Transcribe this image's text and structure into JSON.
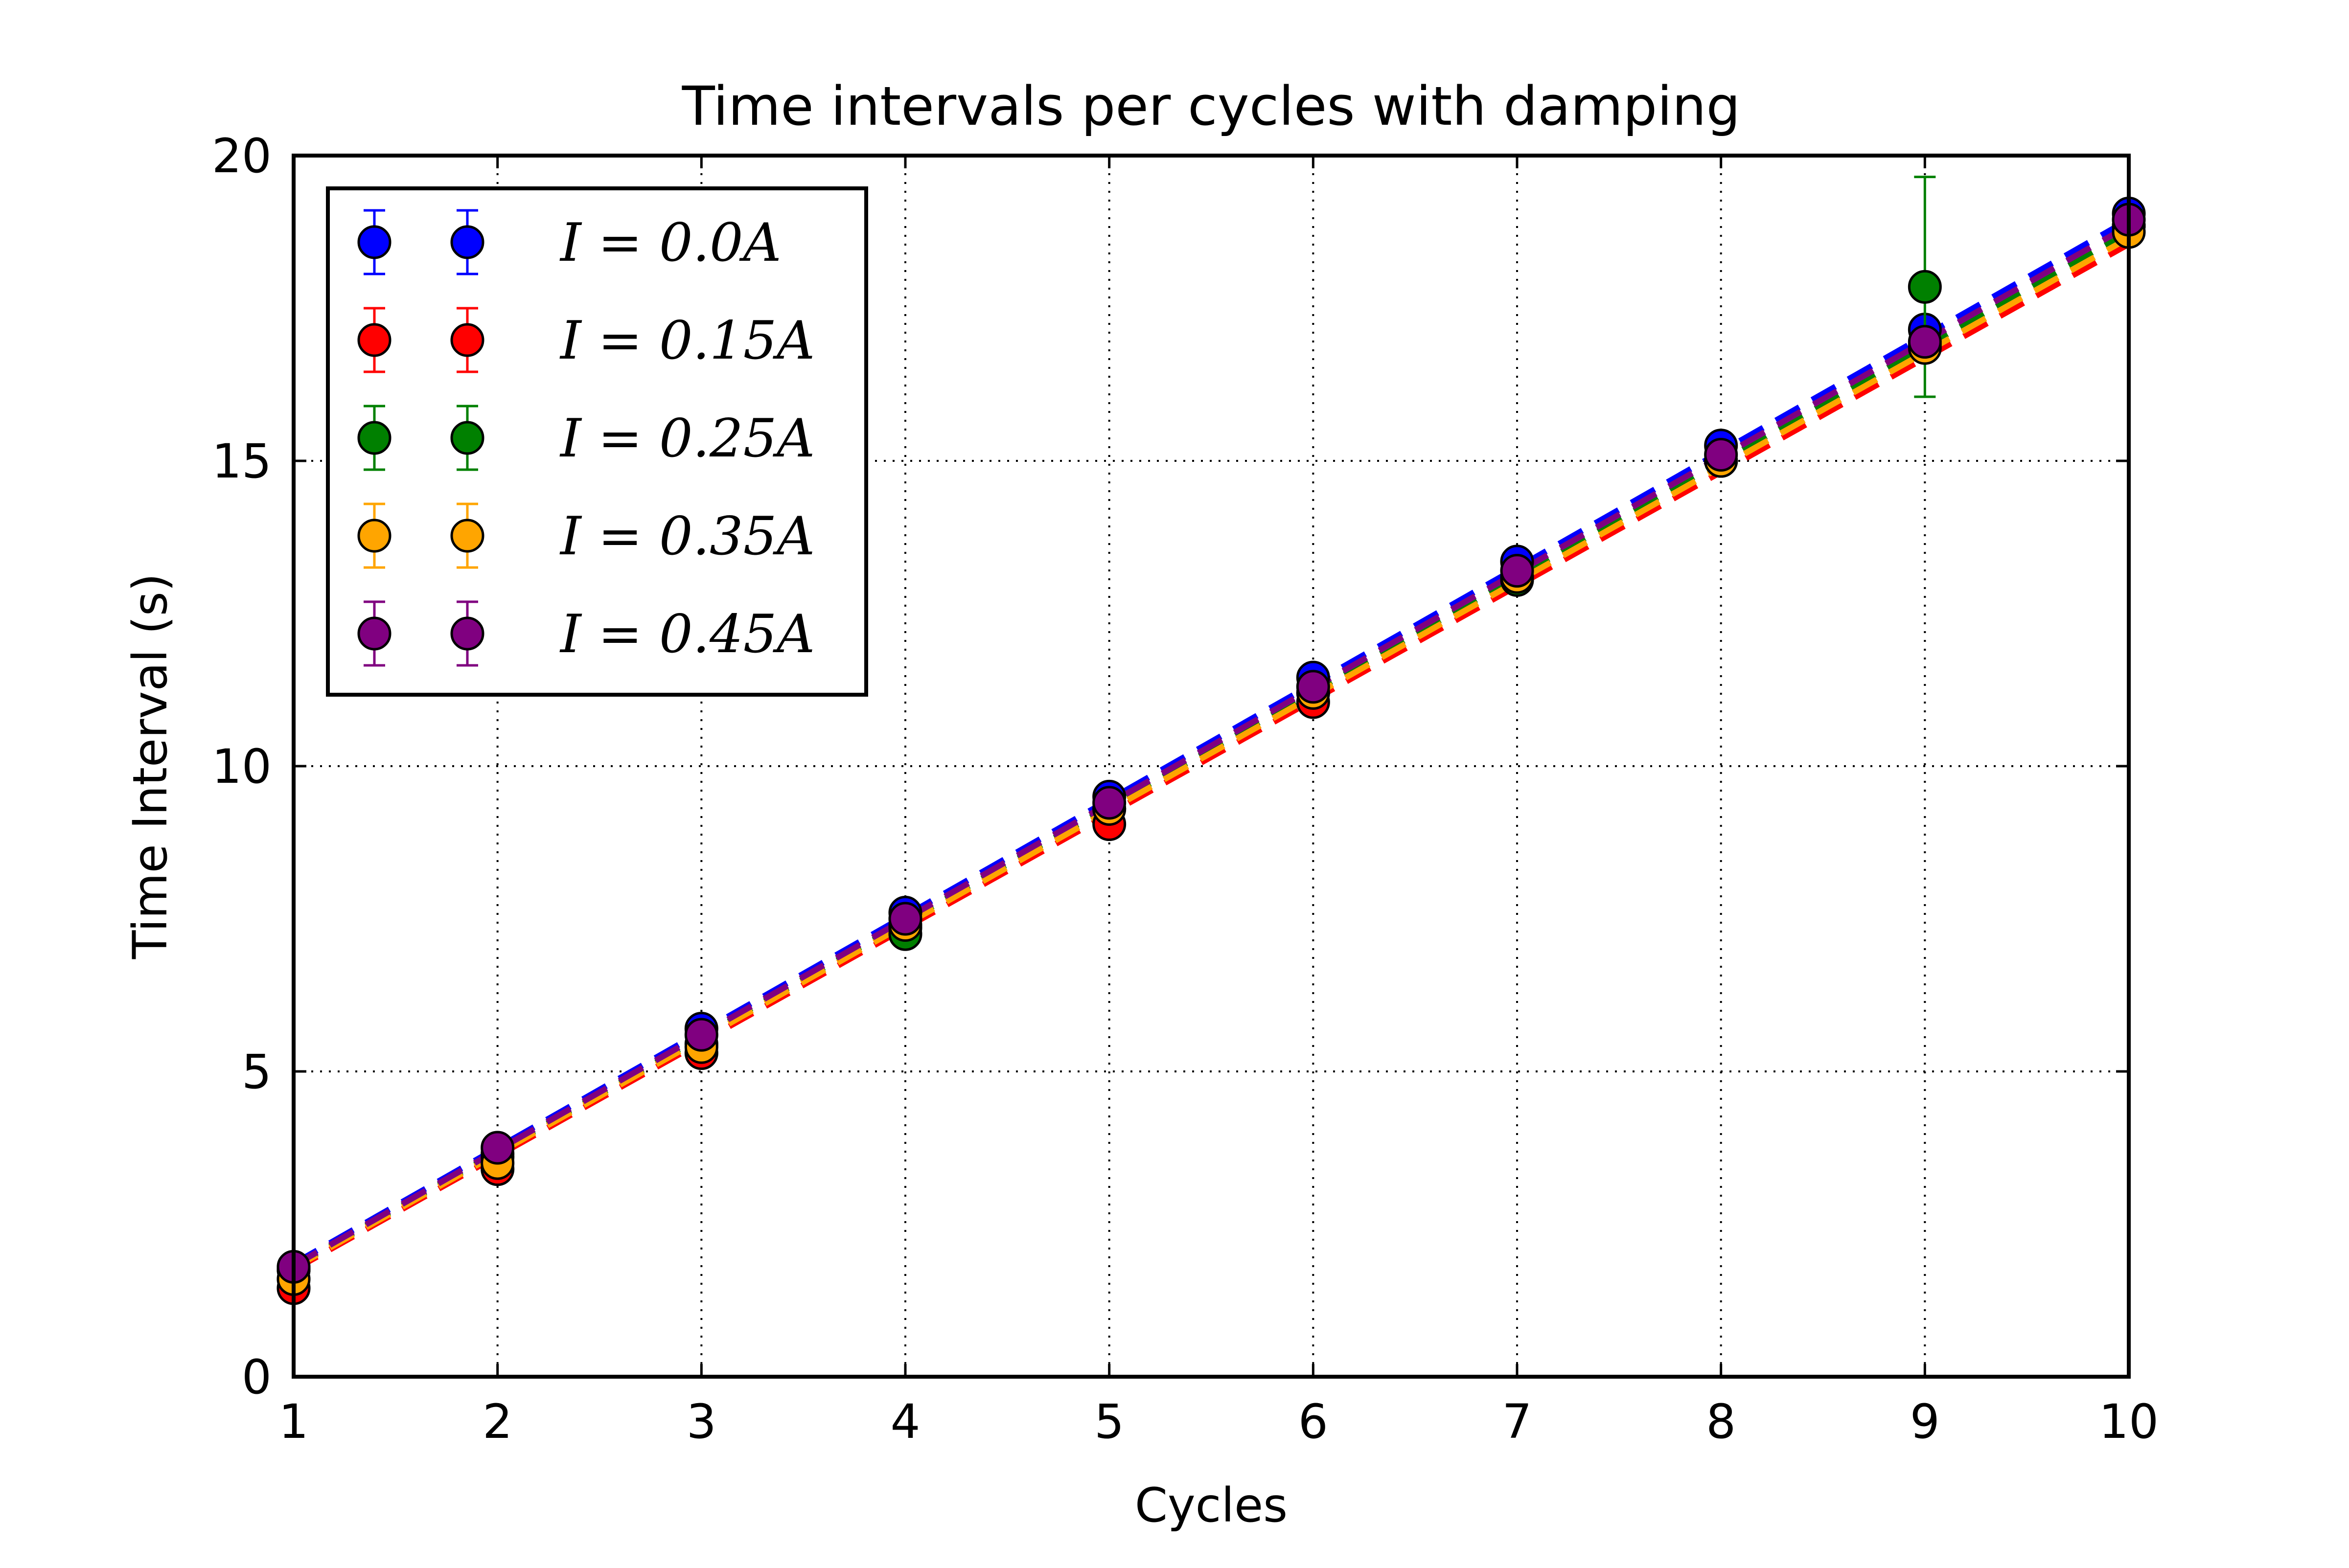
{
  "chart_data": {
    "type": "scatter",
    "title": "Time intervals per cycles with damping",
    "xlabel": "Cycles",
    "ylabel": "Time Interval (s)",
    "xlim": [
      1,
      10
    ],
    "ylim": [
      0,
      20
    ],
    "xticks": [
      1,
      2,
      3,
      4,
      5,
      6,
      7,
      8,
      9,
      10
    ],
    "yticks": [
      0,
      5,
      10,
      15,
      20
    ],
    "grid": true,
    "legend_position": "top-left",
    "x": [
      1,
      2,
      3,
      4,
      5,
      6,
      7,
      8,
      9,
      10
    ],
    "series": [
      {
        "name": "I = 0.0A",
        "color": "#0000ff",
        "values": [
          1.75,
          3.65,
          5.7,
          7.6,
          9.5,
          11.45,
          13.35,
          15.25,
          17.15,
          19.05
        ],
        "errors": [
          0.05,
          0.05,
          0.05,
          0.05,
          0.05,
          0.05,
          0.05,
          0.05,
          0.05,
          0.05
        ],
        "fit": [
          1.85,
          18.95
        ]
      },
      {
        "name": "I = 0.15A",
        "color": "#ff0000",
        "values": [
          1.45,
          3.4,
          5.3,
          7.35,
          9.05,
          11.05,
          13.1,
          15.0,
          16.9,
          18.85
        ],
        "errors": [
          0.05,
          0.05,
          0.05,
          0.05,
          0.05,
          0.05,
          0.05,
          0.05,
          0.05,
          0.05
        ],
        "fit": [
          1.75,
          18.55
        ]
      },
      {
        "name": "I = 0.25A",
        "color": "#008000",
        "values": [
          1.75,
          3.6,
          5.45,
          7.25,
          9.3,
          11.2,
          13.05,
          15.0,
          17.85,
          18.85
        ],
        "errors": [
          0.05,
          0.05,
          0.05,
          0.05,
          0.05,
          0.05,
          0.05,
          0.05,
          1.8,
          0.05
        ],
        "fit": [
          1.8,
          18.75
        ]
      },
      {
        "name": "I = 0.35A",
        "color": "#ffa500",
        "values": [
          1.6,
          3.5,
          5.4,
          7.4,
          9.3,
          11.2,
          13.1,
          15.0,
          16.85,
          18.75
        ],
        "errors": [
          0.05,
          0.05,
          0.05,
          0.05,
          0.05,
          0.05,
          0.05,
          0.05,
          0.05,
          0.05
        ],
        "fit": [
          1.78,
          18.65
        ]
      },
      {
        "name": "I = 0.45A",
        "color": "#800080",
        "values": [
          1.8,
          3.75,
          5.6,
          7.5,
          9.4,
          11.3,
          13.2,
          15.1,
          16.95,
          18.95
        ],
        "errors": [
          0.05,
          0.05,
          0.05,
          0.05,
          0.05,
          0.05,
          0.05,
          0.05,
          0.05,
          0.05
        ],
        "fit": [
          1.82,
          18.85
        ]
      }
    ]
  }
}
